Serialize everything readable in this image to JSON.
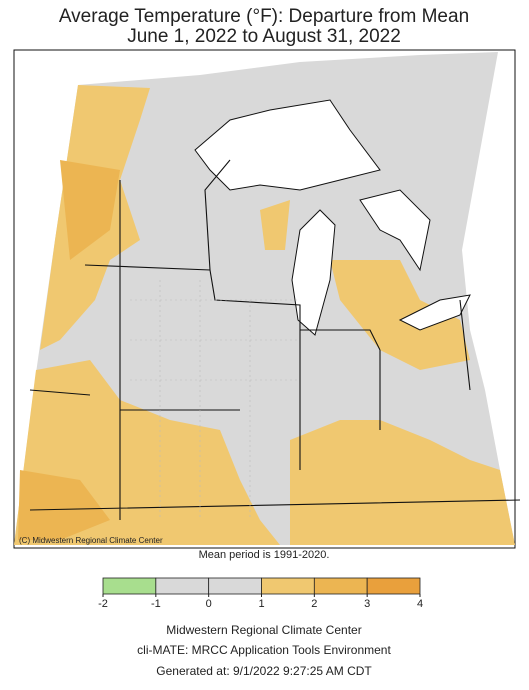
{
  "title": "Average Temperature (°F): Departure from Mean",
  "subtitle": "June 1, 2022 to August 31, 2022",
  "credit": "(C) Midwestern Regional Climate Center",
  "note": "Mean period is 1991-2020.",
  "legend": {
    "ticks": [
      -2,
      -1,
      0,
      1,
      2,
      3,
      4
    ],
    "colors": [
      "#a8de8e",
      "#d9d9d9",
      "#d9d9d9",
      "#f0c870",
      "#ecb552",
      "#e9a03c"
    ]
  },
  "footer": [
    "Midwestern Regional Climate Center",
    "cli-MATE: MRCC Application Tools Environment",
    "Generated at: 9/1/2022 9:27:25 AM CDT"
  ]
}
